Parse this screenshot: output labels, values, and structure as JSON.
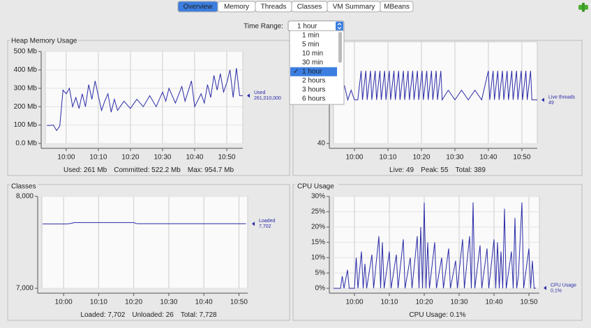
{
  "tabs": {
    "items": [
      "Overview",
      "Memory",
      "Threads",
      "Classes",
      "VM Summary",
      "MBeans"
    ],
    "selected": 0
  },
  "time_range": {
    "label": "Time Range:",
    "selected": "1 hour",
    "check_mark": "✓",
    "options": [
      "1 min",
      "5 min",
      "10 min",
      "30 min",
      "1 hour",
      "2 hours",
      "3 hours",
      "6 hours"
    ],
    "highlighted": 4
  },
  "chart_data": [
    {
      "type": "line",
      "title": "Heap Memory Usage",
      "x": [
        594,
        596,
        597,
        598,
        599,
        600,
        601,
        602,
        603,
        604,
        605,
        606,
        607,
        608,
        609,
        610,
        611,
        612,
        613,
        614,
        615,
        616,
        618,
        620,
        622,
        624,
        626,
        628,
        630,
        631,
        632,
        634,
        636,
        637,
        639,
        640,
        642,
        643,
        644,
        645,
        646,
        647,
        648,
        649,
        650,
        651,
        652,
        653,
        654,
        655
      ],
      "series": [
        {
          "name": "Used",
          "color": "#2a2aa8",
          "current": "261,010,000",
          "values": [
            97,
            100,
            70,
            95,
            290,
            270,
            300,
            200,
            250,
            190,
            270,
            200,
            320,
            240,
            340,
            260,
            180,
            230,
            270,
            170,
            240,
            180,
            230,
            190,
            240,
            200,
            260,
            200,
            280,
            230,
            300,
            220,
            310,
            230,
            340,
            200,
            270,
            220,
            320,
            250,
            370,
            290,
            380,
            280,
            330,
            400,
            250,
            410,
            260,
            260
          ]
        }
      ],
      "xlim": [
        593.5,
        655
      ],
      "ylim": [
        0,
        500
      ],
      "xticks": [
        {
          "value": 600,
          "label": "10:00"
        },
        {
          "value": 610,
          "label": "10:10"
        },
        {
          "value": 620,
          "label": "10:20"
        },
        {
          "value": 630,
          "label": "10:30"
        },
        {
          "value": 640,
          "label": "10:40"
        },
        {
          "value": 650,
          "label": "10:50"
        }
      ],
      "yticks": [
        {
          "value": 0,
          "label": "0.0 Mb"
        },
        {
          "value": 100,
          "label": "100 Mb"
        },
        {
          "value": 200,
          "label": "200 Mb"
        },
        {
          "value": 300,
          "label": "300 Mb"
        },
        {
          "value": 400,
          "label": "400 Mb"
        },
        {
          "value": 500,
          "label": "500 Mb"
        }
      ],
      "grid": true,
      "footer": [
        "Used: 261 Mb",
        "Committed: 522.2 Mb",
        "Max: 954.7 Mb"
      ]
    },
    {
      "type": "line",
      "x": [
        594,
        595,
        596,
        597,
        598,
        599,
        600,
        601,
        602,
        602.4,
        603.4,
        603.8,
        604.8,
        605.2,
        606.2,
        606.6,
        607.6,
        608,
        609,
        609.4,
        610.4,
        610.8,
        611.8,
        612.2,
        613.2,
        613.6,
        614.6,
        615,
        616,
        616.4,
        617.4,
        617.8,
        618.8,
        619.2,
        620.2,
        620.6,
        621.6,
        622,
        623,
        623.4,
        624.4,
        624.8,
        625.8,
        626.2,
        628,
        630,
        632,
        634,
        636,
        638,
        640,
        640.4,
        641.4,
        641.8,
        642.8,
        643.2,
        644.2,
        644.6,
        645.6,
        646,
        647,
        647.4,
        648.4,
        648.8,
        649.8,
        650.2,
        651.2,
        651.6,
        652.6,
        653,
        654,
        654.6
      ],
      "series": [
        {
          "name": "Live threads",
          "color": "#2a2aa8",
          "current": "49",
          "values": [
            49,
            51,
            49,
            52,
            49,
            51,
            49,
            49,
            55,
            49,
            55,
            49,
            55,
            49,
            55,
            49,
            55,
            49,
            55,
            49,
            55,
            49,
            55,
            49,
            55,
            49,
            55,
            49,
            55,
            49,
            55,
            49,
            55,
            49,
            55,
            49,
            55,
            49,
            55,
            49,
            55,
            49,
            55,
            49,
            51,
            49,
            51,
            49,
            51,
            49,
            55,
            49,
            55,
            49,
            55,
            49,
            55,
            49,
            55,
            49,
            55,
            49,
            55,
            49,
            55,
            49,
            55,
            49,
            55,
            49,
            49,
            49
          ]
        }
      ],
      "xlim": [
        593.75,
        654.6
      ],
      "ylim": [
        40,
        61
      ],
      "xticks": [
        {
          "value": 600,
          "label": "10:00"
        },
        {
          "value": 610,
          "label": "10:10"
        },
        {
          "value": 620,
          "label": "10:20"
        },
        {
          "value": 630,
          "label": "10:30"
        },
        {
          "value": 640,
          "label": "10:40"
        },
        {
          "value": 650,
          "label": "10:50"
        }
      ],
      "yticks": [
        40
      ],
      "grid": true,
      "footer": [
        "Live: 49",
        "Peak: 55",
        "Total: 389"
      ]
    },
    {
      "type": "line",
      "title": "Classes",
      "x": [
        594,
        601,
        602,
        603,
        620,
        621,
        630,
        631,
        652
      ],
      "series": [
        {
          "name": "Loaded",
          "color": "#2a2aa8",
          "current": "7,702",
          "values": [
            7700,
            7700,
            7705,
            7715,
            7715,
            7702,
            7702,
            7702,
            7702
          ]
        }
      ],
      "xlim": [
        593.8,
        652.5
      ],
      "ylim": [
        7000,
        8000
      ],
      "xticks": [
        {
          "value": 600,
          "label": "10:00"
        },
        {
          "value": 610,
          "label": "10:10"
        },
        {
          "value": 620,
          "label": "10:20"
        },
        {
          "value": 630,
          "label": "10:30"
        },
        {
          "value": 640,
          "label": "10:40"
        },
        {
          "value": 650,
          "label": "10:50"
        }
      ],
      "yticks": [
        {
          "value": 7000,
          "label": "7,000"
        },
        {
          "value": 8000,
          "label": "8,000"
        }
      ],
      "grid": true,
      "footer": [
        "Loaded: 7,702",
        "Unloaded: 26",
        "Total: 7,728"
      ]
    },
    {
      "type": "line",
      "title": "CPU Usage",
      "x": [
        594,
        596,
        596.5,
        597,
        598,
        598.5,
        600,
        600.5,
        601,
        602,
        602.5,
        603,
        603.5,
        605,
        605.5,
        607,
        607.5,
        608,
        608.5,
        610,
        610.5,
        612,
        612.5,
        614,
        614.5,
        616,
        616.5,
        618,
        618.5,
        619,
        619.5,
        620,
        620.5,
        621,
        621.5,
        623,
        623.5,
        625,
        625.5,
        627,
        627.5,
        629,
        629.5,
        631,
        631.5,
        633,
        633.5,
        634,
        634.5,
        636,
        636.5,
        638,
        638.5,
        640,
        640.5,
        641,
        641.5,
        642,
        642.5,
        643,
        643.5,
        645,
        645.5,
        646,
        646.5,
        647,
        648,
        648.5,
        650,
        650.5,
        651,
        651.5,
        652
      ],
      "series": [
        {
          "name": "CPU Usage",
          "color": "#2a2aa8",
          "current": "0.1%",
          "values": [
            0,
            0,
            4,
            0,
            6,
            0,
            0,
            10,
            0,
            12,
            0,
            8,
            0,
            11,
            0,
            17,
            0,
            15,
            0,
            12,
            0,
            11,
            0,
            16,
            0,
            10,
            0,
            17,
            0,
            20,
            0,
            28,
            0,
            15,
            0,
            15,
            0,
            10,
            0,
            13,
            0,
            9,
            0,
            16,
            0,
            17,
            0,
            28,
            0,
            14,
            0,
            13,
            0,
            16,
            0,
            15,
            0,
            12,
            0,
            26,
            0,
            12,
            0,
            23,
            0,
            4,
            28,
            0,
            13,
            0,
            9,
            0,
            0.1
          ]
        }
      ],
      "xlim": [
        594,
        653
      ],
      "ylim": [
        0,
        30
      ],
      "xticks": [
        {
          "value": 600,
          "label": "10:00"
        },
        {
          "value": 610,
          "label": "10:10"
        },
        {
          "value": 620,
          "label": "10:20"
        },
        {
          "value": 630,
          "label": "10:30"
        },
        {
          "value": 640,
          "label": "10:40"
        },
        {
          "value": 650,
          "label": "10:50"
        }
      ],
      "yticks": [
        {
          "value": 0,
          "label": "0%"
        },
        {
          "value": 5,
          "label": "5%"
        },
        {
          "value": 10,
          "label": "10%"
        },
        {
          "value": 15,
          "label": "15%"
        },
        {
          "value": 20,
          "label": "20%"
        },
        {
          "value": 25,
          "label": "25%"
        },
        {
          "value": 30,
          "label": "30%"
        }
      ],
      "grid": true,
      "footer": [
        "CPU Usage: 0.1%"
      ]
    }
  ]
}
